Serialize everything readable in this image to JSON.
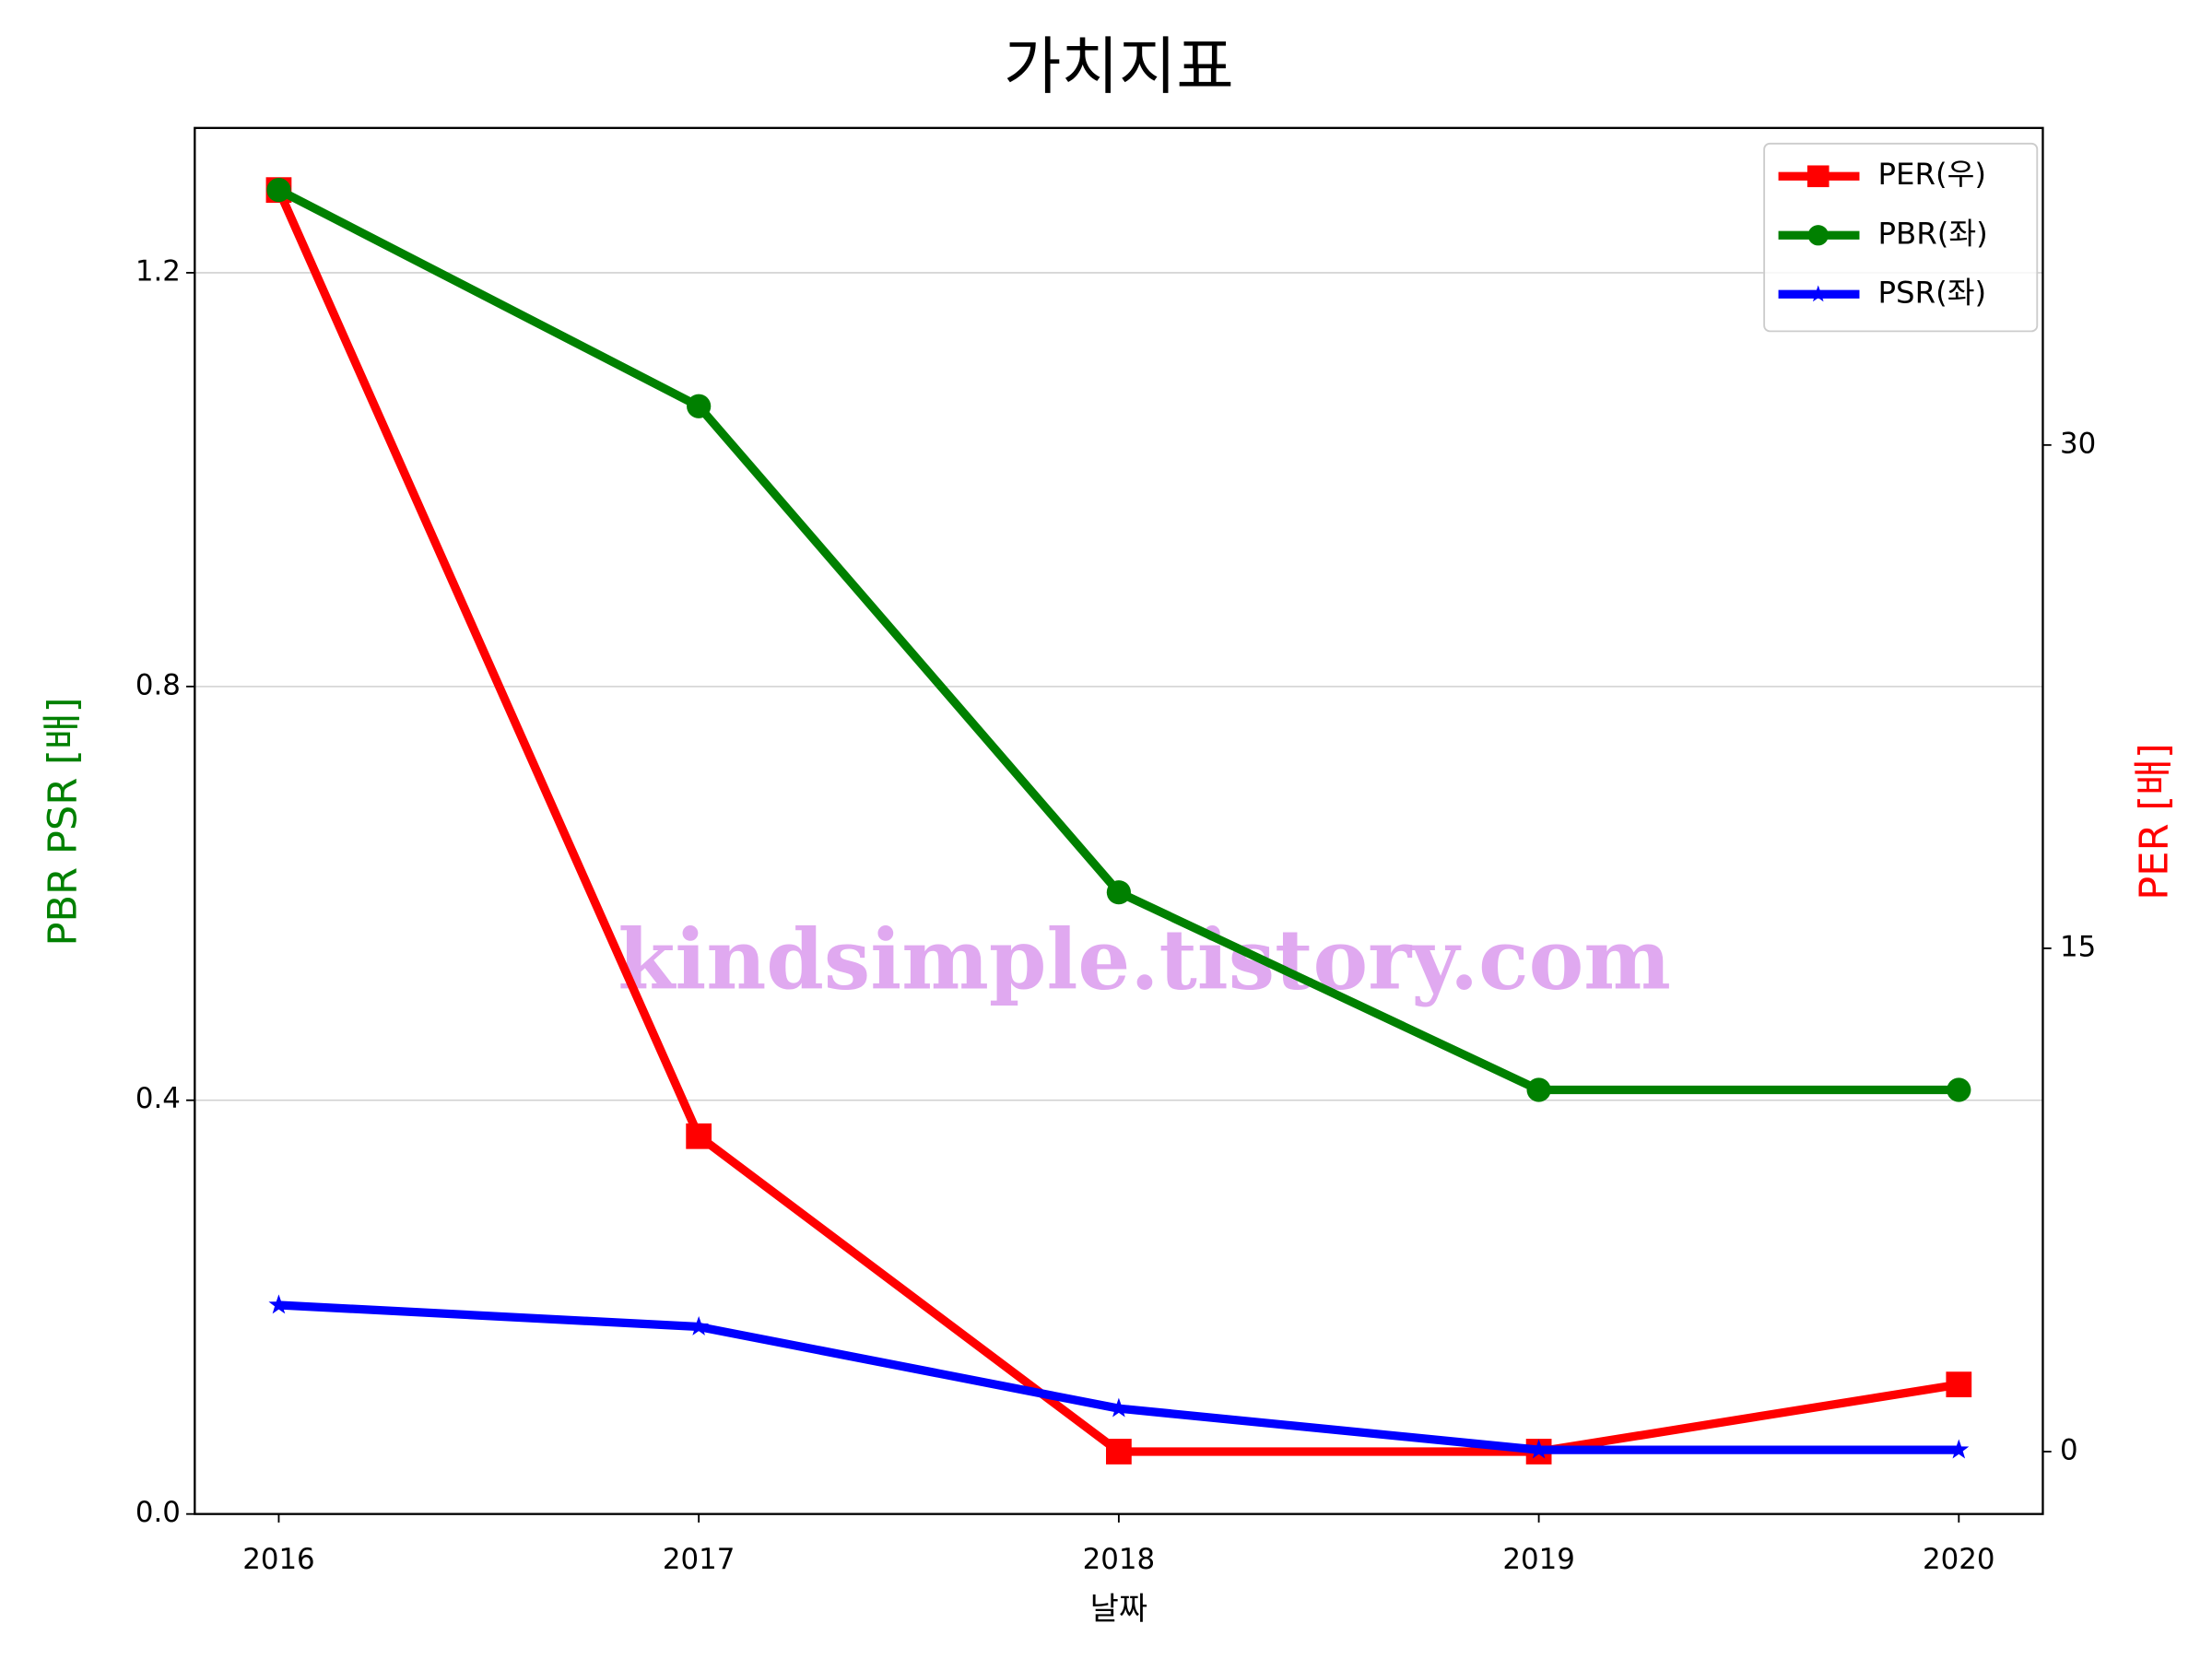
{
  "chart_data": {
    "type": "line",
    "title": "가치지표",
    "x_label": "날짜",
    "y_label": "PBR PSR [배]",
    "y2_label": "PER [배]",
    "watermark": "kindsimple.tistory.com",
    "x": [
      2016,
      2017,
      2018,
      2019,
      2020
    ],
    "xlim": [
      2015.8,
      2020.2
    ],
    "xticks": [
      2016,
      2017,
      2018,
      2019,
      2020
    ],
    "ylim": [
      0,
      1.34
    ],
    "yticks": [
      {
        "value": 0,
        "label": "0.0"
      },
      0.4,
      0.8,
      1.2
    ],
    "y2lim": [
      -1.86,
      39.45
    ],
    "y2ticks": [
      0,
      15,
      30
    ],
    "grid": true,
    "legend": "upper right",
    "series": [
      {
        "name": "PER(우)",
        "color": "#ff0000",
        "marker": "square",
        "axis": "y2",
        "values": [
          37.6,
          9.4,
          0,
          0,
          2.0
        ]
      },
      {
        "name": "PBR(좌)",
        "color": "#008000",
        "marker": "circle",
        "values": [
          1.28,
          1.071,
          0.601,
          0.41,
          0.41
        ]
      },
      {
        "name": "PSR(좌)",
        "color": "#0000ff",
        "marker": "star",
        "values": [
          0.202,
          0.181,
          0.102,
          0.062,
          0.062
        ]
      }
    ]
  }
}
